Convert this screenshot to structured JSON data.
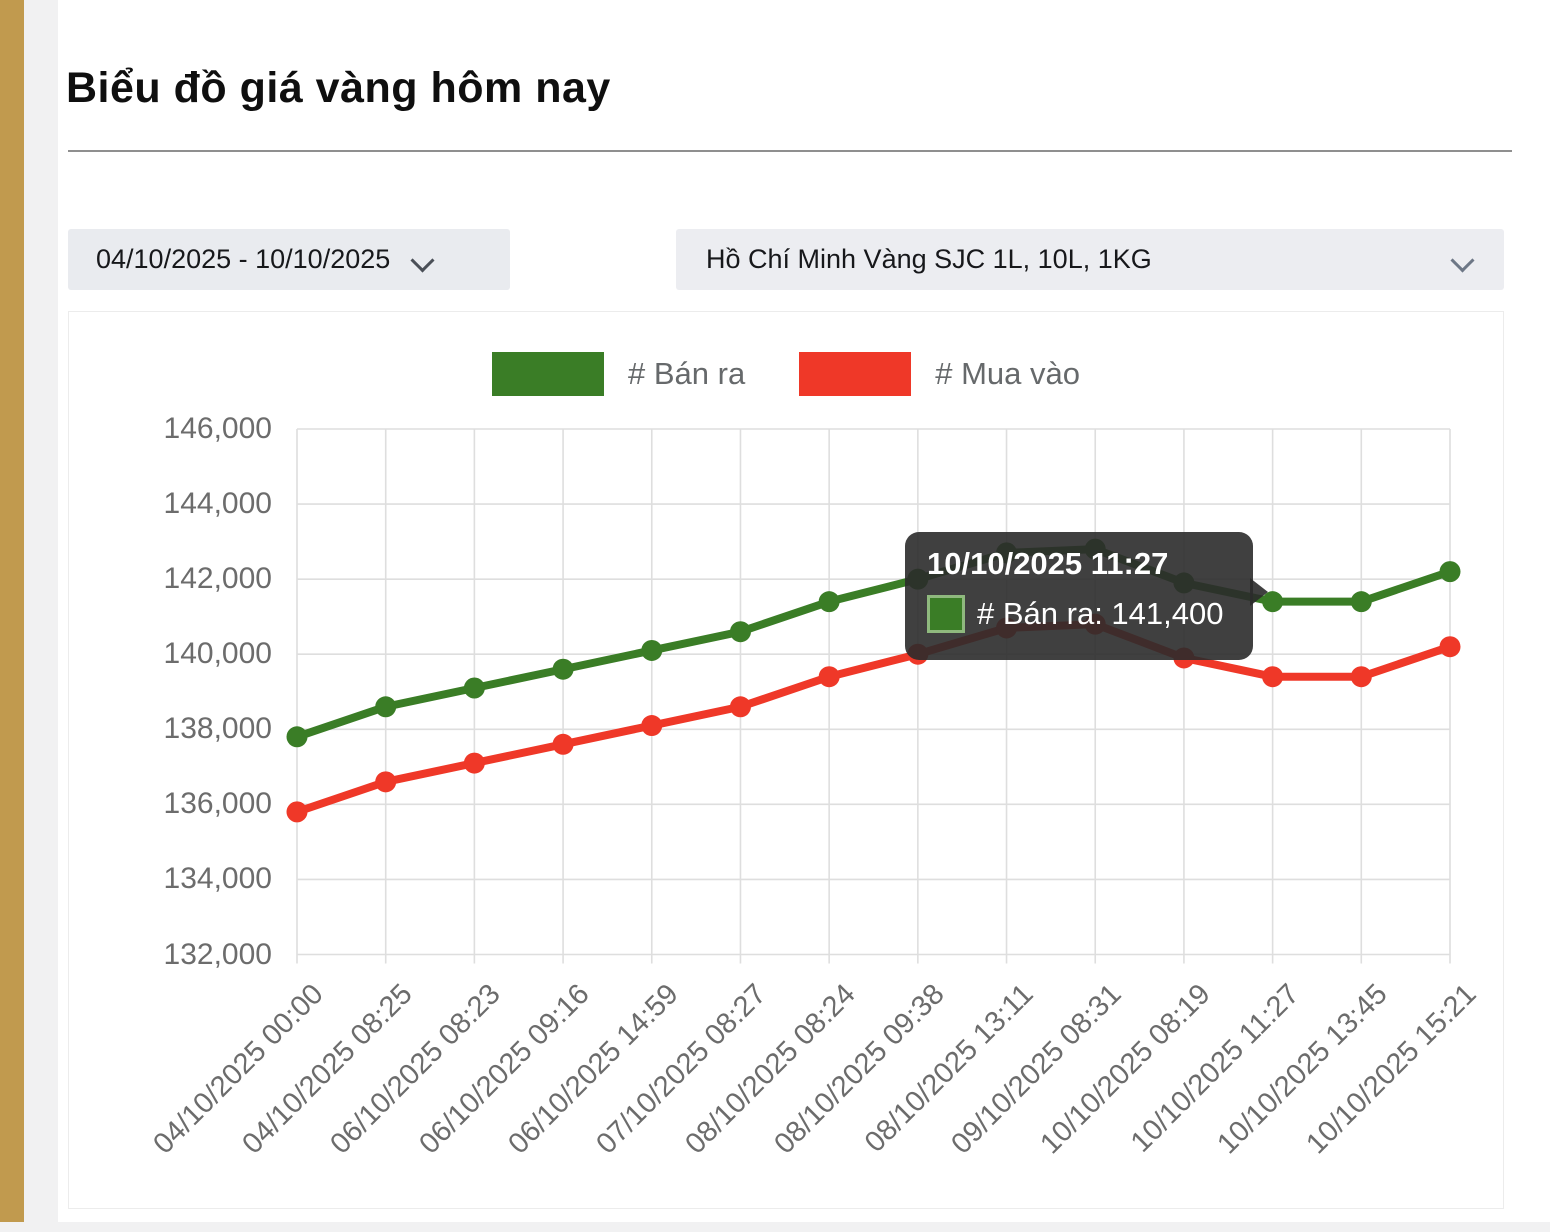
{
  "page": {
    "title": "Biểu đồ giá vàng hôm nay",
    "accent_gold": "#C19A4E"
  },
  "filters": {
    "date_range": "04/10/2025 - 10/10/2025",
    "product": "Hồ Chí Minh Vàng SJC 1L, 10L, 1KG"
  },
  "chart_data": {
    "type": "line",
    "title": "",
    "xlabel": "",
    "ylabel": "",
    "grid": true,
    "legend_position": "top",
    "ylim": [
      132000,
      146000
    ],
    "ytick_step": 2000,
    "ytick_labels": [
      "146,000",
      "144,000",
      "142,000",
      "140,000",
      "138,000",
      "136,000",
      "134,000",
      "132,000"
    ],
    "categories": [
      "04/10/2025 00:00",
      "04/10/2025 08:25",
      "06/10/2025 08:23",
      "06/10/2025 09:16",
      "06/10/2025 14:59",
      "07/10/2025 08:27",
      "08/10/2025 08:24",
      "08/10/2025 09:38",
      "08/10/2025 13:11",
      "09/10/2025 08:31",
      "10/10/2025 08:19",
      "10/10/2025 11:27",
      "10/10/2025 13:45",
      "10/10/2025 15:21"
    ],
    "series": [
      {
        "name": "# Bán ra",
        "color": "#3A7D26",
        "values": [
          137800,
          138600,
          139100,
          139600,
          140100,
          140600,
          141400,
          142000,
          142700,
          142800,
          141900,
          141400,
          141400,
          142200
        ]
      },
      {
        "name": "# Mua vào",
        "color": "#EF3828",
        "values": [
          135800,
          136600,
          137100,
          137600,
          138100,
          138600,
          139400,
          140000,
          140700,
          140800,
          139900,
          139400,
          139400,
          140200
        ]
      }
    ]
  },
  "tooltip": {
    "title": "10/10/2025 11:27",
    "series_label": "# Bán ra",
    "value": "141,400",
    "text": "# Bán ra: 141,400"
  }
}
